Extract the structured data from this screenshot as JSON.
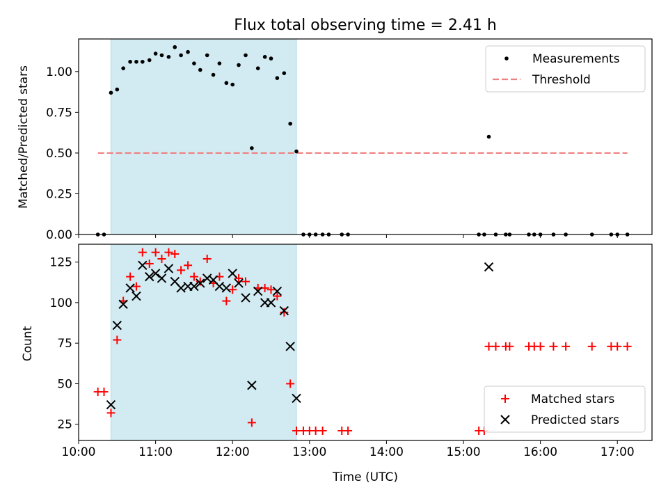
{
  "chart_data": {
    "type": "scatter",
    "title": "Flux total observing time = 2.41 h",
    "xlabel": "Time (UTC)",
    "xlim_hours": [
      10.0,
      17.45
    ],
    "x_ticks": [
      {
        "value": 10,
        "label": "10:00"
      },
      {
        "value": 11,
        "label": "11:00"
      },
      {
        "value": 12,
        "label": "12:00"
      },
      {
        "value": 13,
        "label": "13:00"
      },
      {
        "value": 14,
        "label": "14:00"
      },
      {
        "value": 15,
        "label": "15:00"
      },
      {
        "value": 16,
        "label": "16:00"
      },
      {
        "value": 17,
        "label": "17:00"
      }
    ],
    "shaded_interval_hours": [
      10.42,
      12.83
    ],
    "shade_color": "#add8e6",
    "panels": [
      {
        "id": "top",
        "ylabel": "Matched/Predicted stars",
        "ylim": [
          0,
          1.2
        ],
        "y_ticks": [
          {
            "value": 0.0,
            "label": "0.00"
          },
          {
            "value": 0.25,
            "label": "0.25"
          },
          {
            "value": 0.5,
            "label": "0.50"
          },
          {
            "value": 0.75,
            "label": "0.75"
          },
          {
            "value": 1.0,
            "label": "1.00"
          }
        ],
        "threshold": {
          "name": "Threshold",
          "value": 0.5,
          "x_range": [
            10.25,
            17.13
          ],
          "color": "#f08080"
        },
        "series": [
          {
            "name": "Measurements",
            "marker": "dot",
            "color": "#000000",
            "points": [
              [
                10.25,
                0
              ],
              [
                10.33,
                0
              ],
              [
                10.42,
                0.87
              ],
              [
                10.5,
                0.89
              ],
              [
                10.58,
                1.02
              ],
              [
                10.67,
                1.06
              ],
              [
                10.75,
                1.06
              ],
              [
                10.83,
                1.06
              ],
              [
                10.92,
                1.07
              ],
              [
                11.0,
                1.11
              ],
              [
                11.08,
                1.1
              ],
              [
                11.17,
                1.09
              ],
              [
                11.25,
                1.15
              ],
              [
                11.33,
                1.1
              ],
              [
                11.42,
                1.12
              ],
              [
                11.5,
                1.05
              ],
              [
                11.58,
                1.01
              ],
              [
                11.67,
                1.1
              ],
              [
                11.75,
                0.98
              ],
              [
                11.83,
                1.05
              ],
              [
                11.92,
                0.93
              ],
              [
                12.0,
                0.92
              ],
              [
                12.08,
                1.04
              ],
              [
                12.17,
                1.1
              ],
              [
                12.25,
                0.53
              ],
              [
                12.33,
                1.02
              ],
              [
                12.42,
                1.09
              ],
              [
                12.5,
                1.08
              ],
              [
                12.58,
                0.96
              ],
              [
                12.67,
                0.99
              ],
              [
                12.75,
                0.68
              ],
              [
                12.83,
                0.51
              ],
              [
                12.92,
                0
              ],
              [
                13.0,
                0
              ],
              [
                13.08,
                0
              ],
              [
                13.17,
                0
              ],
              [
                13.25,
                0
              ],
              [
                13.42,
                0
              ],
              [
                13.5,
                0
              ],
              [
                15.2,
                0
              ],
              [
                15.27,
                0
              ],
              [
                15.33,
                0.6
              ],
              [
                15.42,
                0
              ],
              [
                15.55,
                0
              ],
              [
                15.6,
                0
              ],
              [
                15.85,
                0
              ],
              [
                15.92,
                0
              ],
              [
                16.0,
                0
              ],
              [
                16.17,
                0
              ],
              [
                16.33,
                0
              ],
              [
                16.67,
                0
              ],
              [
                16.92,
                0
              ],
              [
                17.0,
                0
              ],
              [
                17.13,
                0
              ]
            ]
          }
        ],
        "legend": {
          "position": "upper right",
          "entries": [
            "Measurements",
            "Threshold"
          ]
        }
      },
      {
        "id": "bottom",
        "ylabel": "Count",
        "ylim": [
          15,
          136
        ],
        "y_ticks": [
          {
            "value": 25,
            "label": "25"
          },
          {
            "value": 50,
            "label": "50"
          },
          {
            "value": 75,
            "label": "75"
          },
          {
            "value": 100,
            "label": "100"
          },
          {
            "value": 125,
            "label": "125"
          }
        ],
        "series": [
          {
            "name": "Matched stars",
            "marker": "plus",
            "color": "#ff0000",
            "points": [
              [
                10.25,
                45
              ],
              [
                10.33,
                45
              ],
              [
                10.42,
                32
              ],
              [
                10.5,
                77
              ],
              [
                10.58,
                101
              ],
              [
                10.67,
                116
              ],
              [
                10.75,
                110
              ],
              [
                10.83,
                131
              ],
              [
                10.92,
                124
              ],
              [
                11.0,
                131
              ],
              [
                11.08,
                127
              ],
              [
                11.17,
                131
              ],
              [
                11.25,
                130
              ],
              [
                11.33,
                120
              ],
              [
                11.42,
                123
              ],
              [
                11.5,
                116
              ],
              [
                11.58,
                113
              ],
              [
                11.67,
                127
              ],
              [
                11.75,
                112
              ],
              [
                11.83,
                116
              ],
              [
                11.92,
                101
              ],
              [
                12.0,
                108
              ],
              [
                12.08,
                115
              ],
              [
                12.17,
                113
              ],
              [
                12.25,
                26
              ],
              [
                12.33,
                109
              ],
              [
                12.42,
                109
              ],
              [
                12.5,
                108
              ],
              [
                12.58,
                104
              ],
              [
                12.67,
                94
              ],
              [
                12.75,
                50
              ],
              [
                12.83,
                21
              ],
              [
                12.92,
                21
              ],
              [
                13.0,
                21
              ],
              [
                13.08,
                21
              ],
              [
                13.17,
                21
              ],
              [
                13.42,
                21
              ],
              [
                13.5,
                21
              ],
              [
                15.2,
                21
              ],
              [
                15.27,
                21
              ],
              [
                15.33,
                73
              ],
              [
                15.42,
                73
              ],
              [
                15.55,
                73
              ],
              [
                15.6,
                73
              ],
              [
                15.85,
                73
              ],
              [
                15.92,
                73
              ],
              [
                16.0,
                73
              ],
              [
                16.17,
                73
              ],
              [
                16.33,
                73
              ],
              [
                16.67,
                73
              ],
              [
                16.92,
                73
              ],
              [
                17.0,
                73
              ],
              [
                17.13,
                73
              ]
            ]
          },
          {
            "name": "Predicted stars",
            "marker": "x",
            "color": "#000000",
            "points": [
              [
                10.42,
                37
              ],
              [
                10.5,
                86
              ],
              [
                10.58,
                99
              ],
              [
                10.67,
                109
              ],
              [
                10.75,
                104
              ],
              [
                10.83,
                123
              ],
              [
                10.92,
                116
              ],
              [
                11.0,
                118
              ],
              [
                11.08,
                115
              ],
              [
                11.17,
                121
              ],
              [
                11.25,
                113
              ],
              [
                11.33,
                109
              ],
              [
                11.42,
                110
              ],
              [
                11.5,
                110
              ],
              [
                11.58,
                112
              ],
              [
                11.67,
                115
              ],
              [
                11.75,
                114
              ],
              [
                11.83,
                110
              ],
              [
                11.92,
                109
              ],
              [
                12.0,
                118
              ],
              [
                12.08,
                112
              ],
              [
                12.17,
                103
              ],
              [
                12.25,
                49
              ],
              [
                12.33,
                107
              ],
              [
                12.42,
                100
              ],
              [
                12.5,
                100
              ],
              [
                12.58,
                107
              ],
              [
                12.67,
                95
              ],
              [
                12.75,
                73
              ],
              [
                12.83,
                41
              ],
              [
                15.33,
                122
              ]
            ]
          }
        ],
        "legend": {
          "position": "lower right",
          "entries": [
            "Matched stars",
            "Predicted stars"
          ]
        }
      }
    ]
  }
}
